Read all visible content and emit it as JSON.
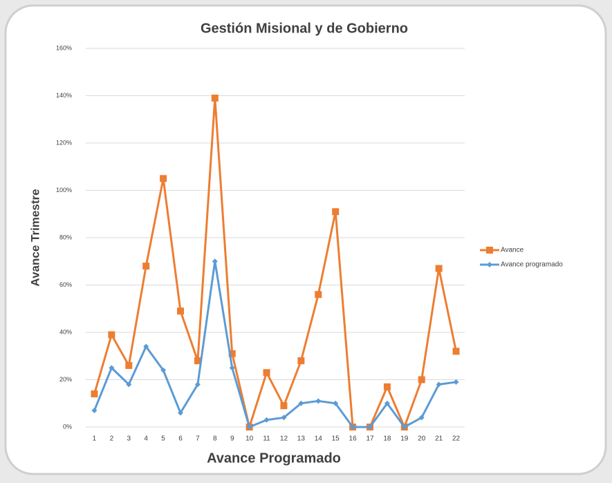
{
  "chart_data": {
    "type": "line",
    "title": "Gestión Misional y de Gobierno",
    "x_label": "Avance Programado",
    "y_label": "Avance Trimestre",
    "categories": [
      "1",
      "2",
      "3",
      "4",
      "5",
      "6",
      "7",
      "8",
      "9",
      "10",
      "11",
      "12",
      "13",
      "14",
      "15",
      "16",
      "17",
      "18",
      "19",
      "20",
      "21",
      "22"
    ],
    "series": [
      {
        "name": "Avance",
        "color": "#ed7d31",
        "marker": "square",
        "values": [
          14,
          39,
          26,
          68,
          105,
          49,
          28,
          139,
          31,
          0,
          23,
          9,
          28,
          56,
          91,
          0,
          0,
          17,
          0,
          20,
          67,
          32
        ]
      },
      {
        "name": "Avance programado",
        "color": "#5b9bd5",
        "marker": "diamond",
        "values": [
          7,
          25,
          18,
          34,
          24,
          6,
          18,
          70,
          25,
          0,
          3,
          4,
          10,
          11,
          10,
          0,
          0,
          10,
          0,
          4,
          18,
          19
        ]
      }
    ],
    "ylim": [
      0,
      160
    ],
    "yticks": [
      {
        "value": 0,
        "label": "0%"
      },
      {
        "value": 20,
        "label": "20%"
      },
      {
        "value": 40,
        "label": "40%"
      },
      {
        "value": 60,
        "label": "60%"
      },
      {
        "value": 80,
        "label": "80%"
      },
      {
        "value": 100,
        "label": "100%"
      },
      {
        "value": 120,
        "label": "120%"
      },
      {
        "value": 140,
        "label": "140%"
      },
      {
        "value": 160,
        "label": "160%"
      }
    ],
    "grid": true,
    "legend": "right"
  }
}
